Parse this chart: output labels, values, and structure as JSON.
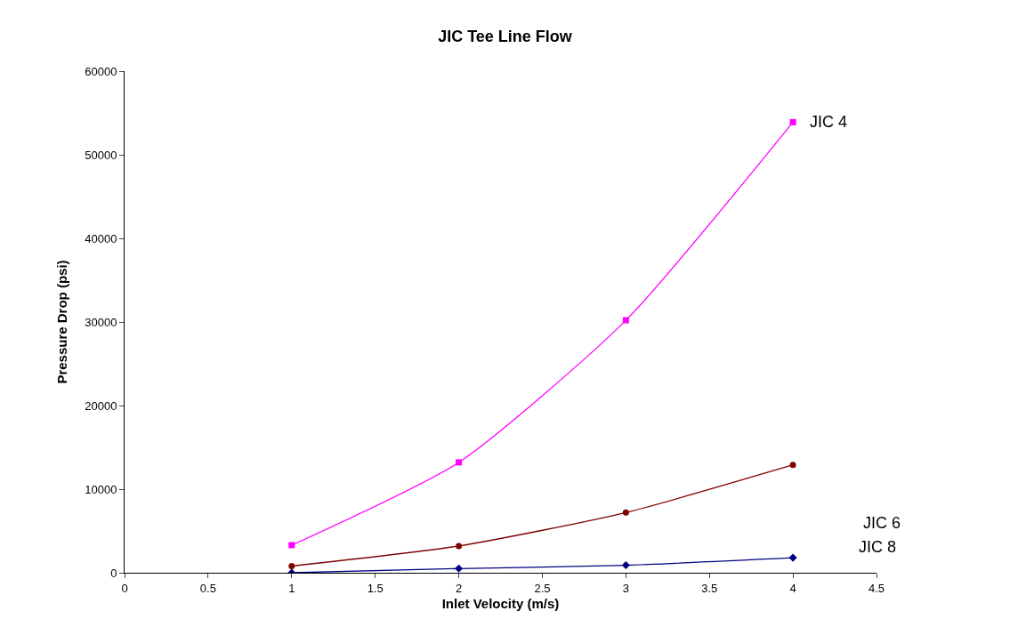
{
  "chart_data": {
    "type": "line",
    "title": "JIC Tee Line Flow",
    "xlabel": "Inlet Velocity (m/s)",
    "ylabel": "Pressure Drop (psi)",
    "x": [
      1,
      2,
      3,
      4
    ],
    "series": [
      {
        "name": "JIC 4",
        "color": "#ff00ff",
        "marker": "square",
        "values": [
          3300,
          13200,
          30200,
          53900
        ]
      },
      {
        "name": "JIC 6",
        "color": "#800000",
        "marker": "circle",
        "values": [
          800,
          3200,
          7200,
          12900
        ]
      },
      {
        "name": "JIC 8",
        "color": "#000080",
        "marker": "diamond",
        "values": [
          0,
          500,
          900,
          1800
        ]
      }
    ],
    "xlim": [
      0,
      4.5
    ],
    "xticks": [
      0,
      0.5,
      1,
      1.5,
      2,
      2.5,
      3,
      3.5,
      4,
      4.5
    ],
    "ylim": [
      0,
      60000
    ],
    "yticks": [
      0,
      10000,
      20000,
      30000,
      40000,
      50000,
      60000
    ],
    "legend": false,
    "line_style": "solid"
  }
}
